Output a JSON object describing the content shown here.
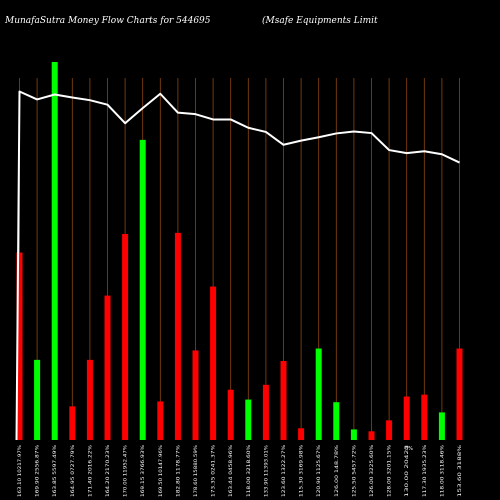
{
  "header": {
    "title_left": "MunafaSutra  Money Flow  Charts for 544695",
    "title_right": "(Msafe    Equipments Limit"
  },
  "colors": {
    "background": "#000000",
    "grid": "#8B4513",
    "up": "#00ff00",
    "down": "#ff0000",
    "line": "#ffffff"
  },
  "chart_data": {
    "type": "bar",
    "grid": true,
    "ylim": [
      0,
      100
    ],
    "categories": [
      "163.10 10217.97%",
      "169.90 2556.87%",
      "163.85 5597.49%",
      "164.95 0727.79%",
      "171.40 2016.22%",
      "164.20 2170.23%",
      "170.00 11952.47%",
      "169.15 3766.93%",
      "169.50 10147.96%",
      "182.80 1178.77%",
      "178.60 15880.59%",
      "173.35 0241.37%",
      "163.44 0458.96%",
      "118.00 3218.60%",
      "133.90 11393.01%",
      "123.60 1322.27%",
      "115.30 3169.98%",
      "120.90 1125.67%",
      "126.00 148.78%",
      "125.50 5457.72%",
      "126.00 3225.60%",
      "128.00 3201.15%",
      "130.00 20423",
      "117.30 1935.23%",
      "118.00 3118.46%",
      "153.60 3188%"
    ],
    "flow": [
      "down",
      "up",
      "up",
      "down",
      "down",
      "down",
      "down",
      "up",
      "down",
      "down",
      "down",
      "down",
      "down",
      "up",
      "down",
      "down",
      "down",
      "up",
      "up",
      "up",
      "down",
      "down",
      "down",
      "down",
      "up",
      "down"
    ],
    "series": [
      {
        "type": "bar",
        "values": [
          49.6,
          21.2,
          100,
          8.9,
          21.2,
          38.2,
          54.5,
          79.4,
          10.2,
          54.8,
          23.7,
          40.6,
          13.3,
          10.7,
          14.6,
          20.9,
          3.1,
          24.2,
          10.0,
          2.8,
          2.3,
          5.2,
          11.5,
          12.0,
          7.3,
          24.2
        ]
      },
      {
        "type": "line",
        "values": [
          92.2,
          90.1,
          91.4,
          90.6,
          89.9,
          88.7,
          83.8,
          87.8,
          91.6,
          86.6,
          86.2,
          84.8,
          84.8,
          82.6,
          81.5,
          78.1,
          79.2,
          80.1,
          81.1,
          81.6,
          81.2,
          76.7,
          75.9,
          76.4,
          75.6,
          73.4
        ]
      }
    ],
    "extra_label": "0%"
  }
}
